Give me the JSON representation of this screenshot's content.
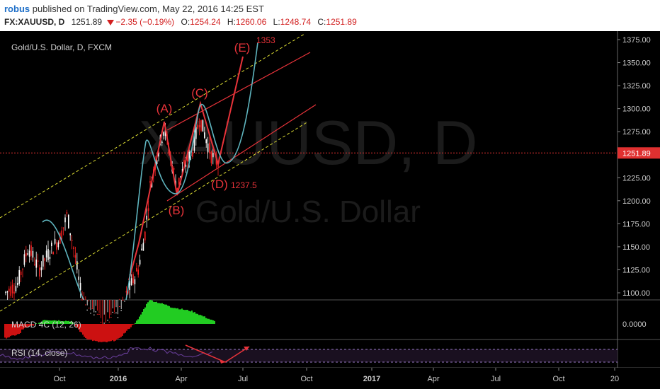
{
  "header": {
    "username": "robus",
    "published_text": "published on TradingView.com, May 22, 2016 14:25 EST",
    "symbol": "FX:XAUUSD, D",
    "last": "1251.89",
    "change": "−2.35 (−0.19%)",
    "open_label": "O:",
    "open": "1254.24",
    "high_label": "H:",
    "high": "1260.06",
    "low_label": "L:",
    "low": "1248.74",
    "close_label": "C:",
    "close": "1251.89"
  },
  "chart": {
    "series_label": "Gold/U.S. Dollar, D, FXCM",
    "watermark_symbol": "XAUUSD, D",
    "watermark_desc": "Gold/U.S. Dollar",
    "price_ticks": [
      "1375.00",
      "1350.00",
      "1325.00",
      "1300.00",
      "1275.00",
      "1250.00",
      "1225.00",
      "1200.00",
      "1175.00",
      "1150.00",
      "1125.00",
      "1100.00"
    ],
    "current_price": "1251.89",
    "time_ticks": [
      "Oct",
      "2016",
      "Apr",
      "Jul",
      "Oct",
      "2017",
      "Apr",
      "Jul",
      "Oct",
      "20"
    ],
    "wave_labels": [
      "(A)",
      "(B)",
      "(C)",
      "(D)",
      "(E)"
    ],
    "target_high": "1353",
    "target_low": "1237.5"
  },
  "macd": {
    "label": "MACD 4C (12, 26)",
    "zero_tick": "0.0000"
  },
  "rsi": {
    "label": "RSI (14, close)"
  },
  "colors": {
    "up": "#ffffff",
    "down": "#ff2020",
    "annotation": "#e8333a",
    "channel": "#dddd33",
    "curve": "#5fb5bf",
    "rsi": "#6a3f9c",
    "macd_up": "#22cc22",
    "macd_down": "#cc1111"
  }
}
